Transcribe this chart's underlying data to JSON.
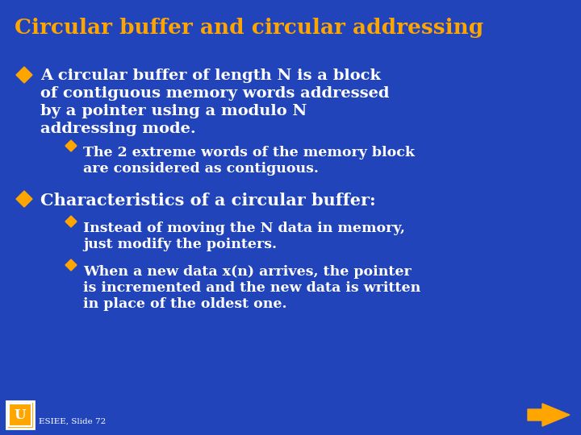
{
  "title": "Circular buffer and circular addressing",
  "title_color": "#FFA500",
  "bg_color": "#2244bb",
  "text_color": "#ffffff",
  "bullet_color": "#FFA500",
  "sub_bullet_color": "#FFA500",
  "bullet1_line1": "A circular buffer of length N is a block",
  "bullet1_line2": "of contiguous memory words addressed",
  "bullet1_line3": "by a pointer using a modulo N",
  "bullet1_line4": "addressing mode.",
  "sub_bullet1_line1": "The 2 extreme words of the memory block",
  "sub_bullet1_line2": "are considered as contiguous.",
  "bullet2": "Characteristics of a circular buffer:",
  "sub_bullet2a_line1": "Instead of moving the N data in memory,",
  "sub_bullet2a_line2": "just modify the pointers.",
  "sub_bullet2b_line1": "When a new data x(n) arrives, the pointer",
  "sub_bullet2b_line2": "is incremented and the new data is written",
  "sub_bullet2b_line3": "in place of the oldest one.",
  "footer": "ESIEE, Slide 72"
}
